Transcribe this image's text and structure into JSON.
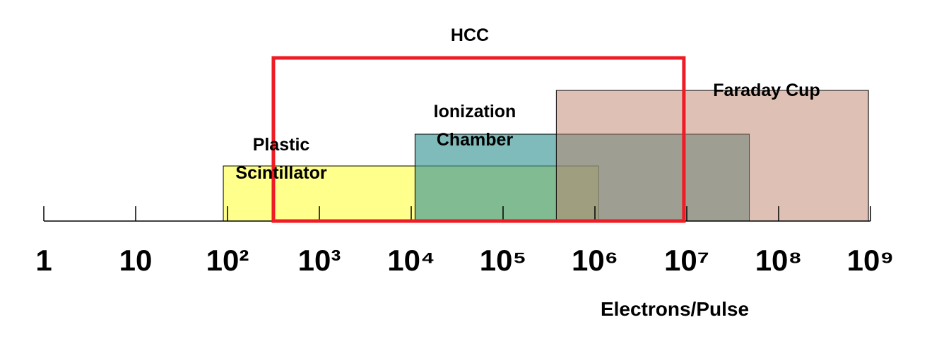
{
  "chart_data": {
    "type": "range",
    "x_label": "Electrons/Pulse",
    "xlim": [
      1,
      1000000000
    ],
    "log_scale": true,
    "xticks": [
      1,
      10,
      {
        "value": 100,
        "label": "10²"
      },
      {
        "value": 1000,
        "label": "10³"
      },
      {
        "value": 10000,
        "label": "10⁴"
      },
      {
        "value": 100000,
        "label": "10⁵"
      },
      {
        "value": 1000000,
        "label": "10⁶"
      },
      {
        "value": 10000000,
        "label": "10⁷"
      },
      {
        "value": 100000000,
        "label": "10⁸"
      },
      {
        "value": 1000000000,
        "label": "10⁹"
      }
    ],
    "series": [
      {
        "name": "Plastic Scintillator",
        "color": "rgba(255,255,100,0.75)",
        "values": [
          90,
          1100000
        ]
      },
      {
        "name": "Ionization Chamber",
        "color": "rgba(60,150,150,0.65)",
        "values": [
          11000,
          48000000
        ]
      },
      {
        "name": "Faraday Cup",
        "color": "rgba(190,130,105,0.5)",
        "values": [
          380000,
          950000000
        ]
      },
      {
        "name": "HCC",
        "color": "#ee1c25",
        "values": [
          316,
          9300000
        ],
        "outline": true
      }
    ]
  }
}
